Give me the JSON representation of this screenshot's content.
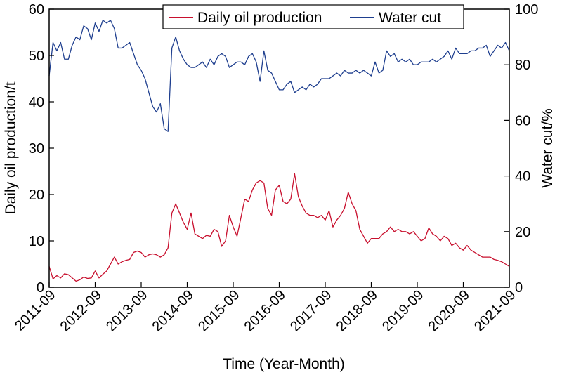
{
  "chart_data": {
    "type": "line",
    "title": "",
    "xlabel": "Time (Year-Month)",
    "ylabel_left": "Daily oil production/t",
    "ylabel_right": "Water cut/%",
    "xlim": [
      0,
      120
    ],
    "ylim_left": [
      0,
      60
    ],
    "ylim_right": [
      0,
      100
    ],
    "x_ticks": [
      0,
      12,
      24,
      36,
      48,
      60,
      72,
      84,
      96,
      108,
      120
    ],
    "x_tick_labels": [
      "2011-09",
      "2012-09",
      "2013-09",
      "2014-09",
      "2015-09",
      "2016-09",
      "2017-09",
      "2018-09",
      "2019-09",
      "2020-09",
      "2021-09"
    ],
    "y_ticks_left": [
      0,
      10,
      20,
      30,
      40,
      50,
      60
    ],
    "y_ticks_right": [
      0,
      20,
      40,
      60,
      80,
      100
    ],
    "grid": false,
    "legend_position": "top-right",
    "series": [
      {
        "name": "Daily oil production",
        "axis": "left",
        "color": "#c8102e",
        "x": [
          0,
          1,
          2,
          3,
          4,
          5,
          6,
          7,
          8,
          9,
          10,
          11,
          12,
          13,
          14,
          15,
          16,
          17,
          18,
          19,
          20,
          21,
          22,
          23,
          24,
          25,
          26,
          27,
          28,
          29,
          30,
          31,
          32,
          33,
          34,
          35,
          36,
          37,
          38,
          39,
          40,
          41,
          42,
          43,
          44,
          45,
          46,
          47,
          48,
          49,
          50,
          51,
          52,
          53,
          54,
          55,
          56,
          57,
          58,
          59,
          60,
          61,
          62,
          63,
          64,
          65,
          66,
          67,
          68,
          69,
          70,
          71,
          72,
          73,
          74,
          75,
          76,
          77,
          78,
          79,
          80,
          81,
          82,
          83,
          84,
          85,
          86,
          87,
          88,
          89,
          90,
          91,
          92,
          93,
          94,
          95,
          96,
          97,
          98,
          99,
          100,
          101,
          102,
          103,
          104,
          105,
          106,
          107,
          108,
          109,
          110,
          111,
          112,
          113,
          114,
          115,
          116,
          117,
          118,
          119,
          120
        ],
        "values": [
          4.5,
          1.8,
          2.5,
          2.0,
          2.9,
          2.7,
          2.0,
          1.3,
          1.6,
          2.2,
          1.9,
          2.0,
          3.5,
          2.0,
          2.8,
          3.5,
          5.0,
          6.5,
          5.0,
          5.5,
          5.8,
          6.0,
          7.5,
          7.8,
          7.5,
          6.5,
          7.0,
          7.2,
          7.0,
          6.5,
          7.0,
          8.5,
          16.0,
          18.0,
          16.0,
          14.0,
          12.5,
          16.0,
          11.5,
          11.0,
          10.5,
          11.2,
          11.0,
          12.5,
          12.0,
          8.8,
          10.0,
          15.5,
          13.0,
          11.0,
          15.0,
          19.0,
          18.5,
          21.0,
          22.5,
          23.0,
          22.5,
          17.0,
          15.5,
          21.0,
          22.0,
          18.5,
          18.0,
          19.0,
          24.5,
          19.5,
          17.5,
          16.0,
          15.5,
          15.5,
          15.0,
          15.5,
          14.5,
          16.5,
          13.0,
          14.5,
          15.5,
          17.0,
          20.5,
          18.0,
          16.5,
          12.5,
          11.0,
          9.5,
          10.5,
          10.5,
          10.5,
          11.5,
          12.0,
          13.0,
          12.0,
          12.5,
          12.0,
          12.0,
          11.5,
          12.0,
          11.0,
          10.0,
          10.5,
          12.8,
          11.5,
          11.0,
          10.0,
          11.0,
          10.5,
          9.0,
          9.5,
          8.5,
          8.0,
          9.0,
          8.0,
          7.5,
          7.0,
          6.5,
          6.5,
          6.5,
          6.0,
          5.8,
          5.5,
          5.0,
          4.5
        ]
      },
      {
        "name": "Water cut",
        "axis": "right",
        "color": "#1f3f8f",
        "x": [
          0,
          1,
          2,
          3,
          4,
          5,
          6,
          7,
          8,
          9,
          10,
          11,
          12,
          13,
          14,
          15,
          16,
          17,
          18,
          19,
          20,
          21,
          22,
          23,
          24,
          25,
          26,
          27,
          28,
          29,
          30,
          31,
          32,
          33,
          34,
          35,
          36,
          37,
          38,
          39,
          40,
          41,
          42,
          43,
          44,
          45,
          46,
          47,
          48,
          49,
          50,
          51,
          52,
          53,
          54,
          55,
          56,
          57,
          58,
          59,
          60,
          61,
          62,
          63,
          64,
          65,
          66,
          67,
          68,
          69,
          70,
          71,
          72,
          73,
          74,
          75,
          76,
          77,
          78,
          79,
          80,
          81,
          82,
          83,
          84,
          85,
          86,
          87,
          88,
          89,
          90,
          91,
          92,
          93,
          94,
          95,
          96,
          97,
          98,
          99,
          100,
          101,
          102,
          103,
          104,
          105,
          106,
          107,
          108,
          109,
          110,
          111,
          112,
          113,
          114,
          115,
          116,
          117,
          118,
          119,
          120
        ],
        "values": [
          76,
          88,
          85,
          88,
          82,
          82,
          87,
          90,
          89,
          94,
          93,
          89,
          95,
          92,
          96,
          95,
          96,
          93,
          86,
          86,
          87,
          88,
          84,
          80,
          78,
          75,
          70,
          65,
          63,
          66,
          57,
          56,
          86,
          90,
          85,
          82,
          80,
          79,
          79,
          80,
          81,
          79,
          82,
          80,
          83,
          84,
          83,
          79,
          80,
          81,
          81,
          80,
          83,
          84,
          81,
          74,
          85,
          78,
          77,
          74,
          71,
          71,
          73,
          74,
          70,
          71,
          72,
          71,
          73,
          72,
          73,
          75,
          75,
          75,
          76,
          77,
          76,
          78,
          77,
          77,
          78,
          77,
          78,
          77,
          76,
          81,
          77,
          78,
          85,
          83,
          84,
          81,
          82,
          81,
          82,
          80,
          80,
          81,
          81,
          81,
          82,
          81,
          82,
          83,
          85,
          82,
          86,
          84,
          84,
          84,
          85,
          85,
          86,
          86,
          87,
          83,
          85,
          87,
          86,
          88,
          85
        ]
      }
    ]
  }
}
